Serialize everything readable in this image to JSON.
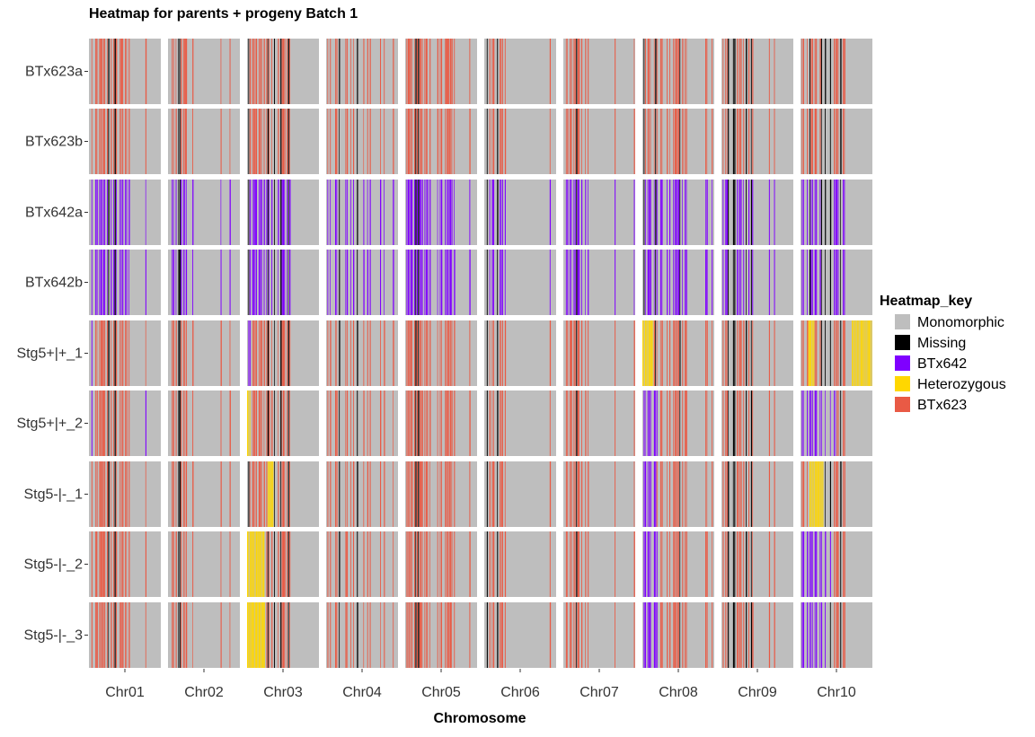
{
  "chart_data": {
    "type": "heatmap",
    "title": "Heatmap for parents + progeny Batch 1",
    "xlabel": "Chromosome",
    "ylabel": "",
    "rows": [
      "BTx623a",
      "BTx623b",
      "BTx642a",
      "BTx642b",
      "Stg5+|+_1",
      "Stg5+|+_2",
      "Stg5-|-_1",
      "Stg5-|-_2",
      "Stg5-|-_3"
    ],
    "columns": [
      "Chr01",
      "Chr02",
      "Chr03",
      "Chr04",
      "Chr05",
      "Chr06",
      "Chr07",
      "Chr08",
      "Chr09",
      "Chr10"
    ],
    "legend": {
      "title": "Heatmap_key",
      "position": "right",
      "entries": [
        {
          "label": "Monomorphic",
          "color": "#bebebe"
        },
        {
          "label": "Missing",
          "color": "#000000"
        },
        {
          "label": "BTx642",
          "color": "#7f00ff"
        },
        {
          "label": "Heterozygous",
          "color": "#ffd700"
        },
        {
          "label": "BTx623",
          "color": "#e95a45"
        }
      ]
    },
    "grid": false,
    "row_profiles": {
      "BTx623a": "BTx623",
      "BTx623b": "BTx623",
      "BTx642a": "BTx642",
      "BTx642b": "BTx642",
      "Stg5+|+_1": "BTx623",
      "Stg5+|+_2": "BTx623",
      "Stg5-|-_1": "BTx623",
      "Stg5-|-_2": "BTx623",
      "Stg5-|-_3": "BTx623"
    },
    "chromosome_polymorphic_fraction": {
      "Chr01": 0.55,
      "Chr02": 0.3,
      "Chr03": 0.55,
      "Chr04": 0.5,
      "Chr05": 0.6,
      "Chr06": 0.25,
      "Chr07": 0.35,
      "Chr08": 0.6,
      "Chr09": 0.4,
      "Chr10": 0.65
    },
    "introgressions": [
      {
        "row": "Stg5+|+_1",
        "chromosome": "Chr01",
        "state": "BTx642",
        "start": 0.0,
        "end": 0.07
      },
      {
        "row": "Stg5+|+_1",
        "chromosome": "Chr03",
        "state": "BTx642",
        "start": 0.0,
        "end": 0.07
      },
      {
        "row": "Stg5+|+_1",
        "chromosome": "Chr08",
        "state": "Heterozygous",
        "start": 0.0,
        "end": 0.16
      },
      {
        "row": "Stg5+|+_1",
        "chromosome": "Chr10",
        "state": "Heterozygous",
        "start": 0.1,
        "end": 0.2
      },
      {
        "row": "Stg5+|+_1",
        "chromosome": "Chr10",
        "state": "Heterozygous",
        "start": 0.72,
        "end": 1.0
      },
      {
        "row": "Stg5+|+_2",
        "chromosome": "Chr01",
        "state": "BTx642",
        "start": 0.0,
        "end": 0.06
      },
      {
        "row": "Stg5+|+_2",
        "chromosome": "Chr01",
        "state": "BTx642",
        "start": 0.75,
        "end": 1.0
      },
      {
        "row": "Stg5+|+_2",
        "chromosome": "Chr03",
        "state": "Heterozygous",
        "start": 0.0,
        "end": 0.05
      },
      {
        "row": "Stg5+|+_2",
        "chromosome": "Chr08",
        "state": "BTx642",
        "start": 0.0,
        "end": 0.22
      },
      {
        "row": "Stg5+|+_2",
        "chromosome": "Chr10",
        "state": "BTx642",
        "start": 0.0,
        "end": 0.5
      },
      {
        "row": "Stg5-|-_1",
        "chromosome": "Chr03",
        "state": "Heterozygous",
        "start": 0.28,
        "end": 0.38
      },
      {
        "row": "Stg5-|-_1",
        "chromosome": "Chr08",
        "state": "BTx642",
        "start": 0.0,
        "end": 0.2
      },
      {
        "row": "Stg5-|-_1",
        "chromosome": "Chr10",
        "state": "Heterozygous",
        "start": 0.12,
        "end": 0.32
      },
      {
        "row": "Stg5-|-_2",
        "chromosome": "Chr03",
        "state": "Heterozygous",
        "start": 0.0,
        "end": 0.25
      },
      {
        "row": "Stg5-|-_2",
        "chromosome": "Chr03",
        "state": "BTx642",
        "start": 0.7,
        "end": 0.8
      },
      {
        "row": "Stg5-|-_2",
        "chromosome": "Chr08",
        "state": "BTx642",
        "start": 0.0,
        "end": 0.22
      },
      {
        "row": "Stg5-|-_2",
        "chromosome": "Chr10",
        "state": "BTx642",
        "start": 0.0,
        "end": 0.45
      },
      {
        "row": "Stg5-|-_3",
        "chromosome": "Chr03",
        "state": "Heterozygous",
        "start": 0.0,
        "end": 0.25
      },
      {
        "row": "Stg5-|-_3",
        "chromosome": "Chr08",
        "state": "BTx642",
        "start": 0.0,
        "end": 0.22
      },
      {
        "row": "Stg5-|-_3",
        "chromosome": "Chr10",
        "state": "BTx642",
        "start": 0.0,
        "end": 0.4
      }
    ]
  }
}
